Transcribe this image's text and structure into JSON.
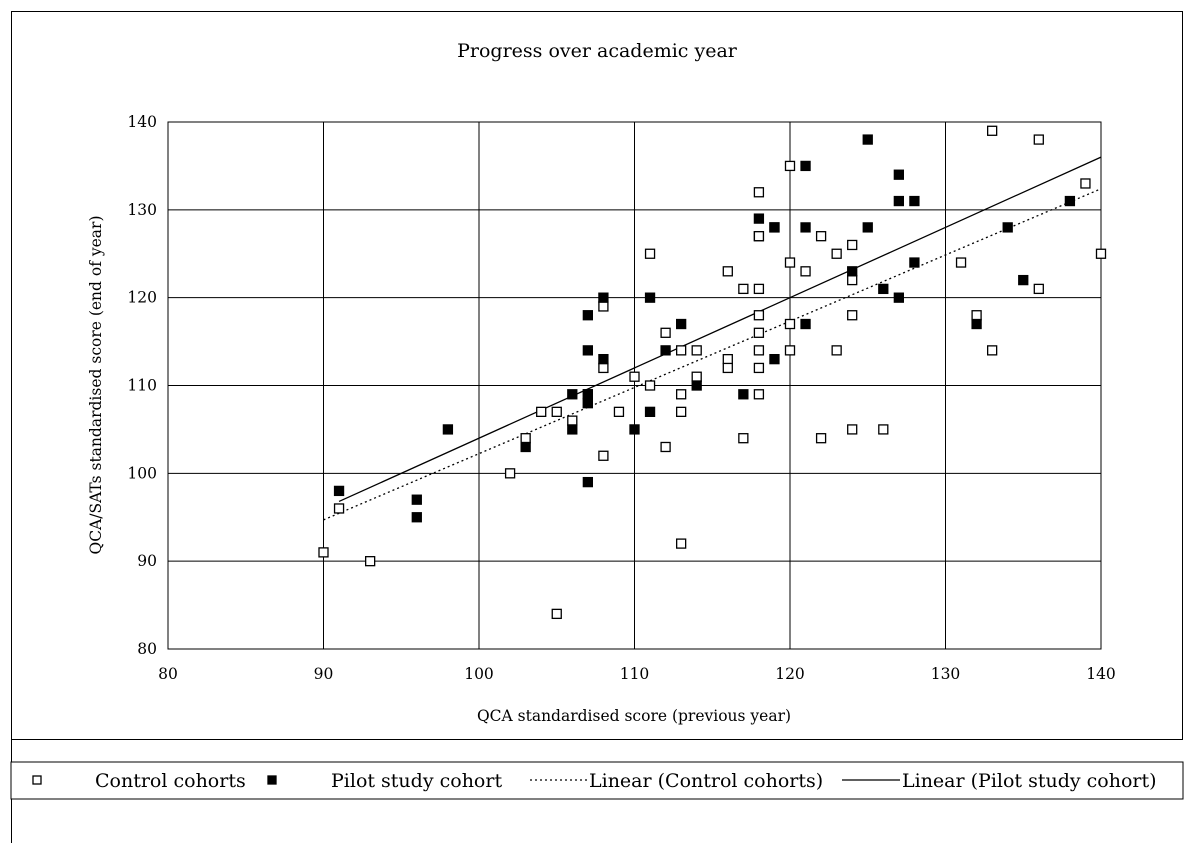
{
  "chart_data": {
    "type": "scatter",
    "title": "Progress over academic year",
    "xlabel": "QCA standardised score (previous year)",
    "ylabel": "QCA/SATs standardised score (end of year)",
    "xlim": [
      80,
      140
    ],
    "ylim": [
      80,
      140
    ],
    "xticks": [
      80,
      90,
      100,
      110,
      120,
      130,
      140
    ],
    "yticks": [
      80,
      90,
      100,
      110,
      120,
      130,
      140
    ],
    "grid": true,
    "legend_position": "bottom",
    "series": [
      {
        "name": "Control cohorts",
        "marker": "hollow-square",
        "color": "#000000",
        "points": [
          [
            90,
            91
          ],
          [
            91,
            96
          ],
          [
            93,
            90
          ],
          [
            102,
            100
          ],
          [
            103,
            104
          ],
          [
            104,
            107
          ],
          [
            105,
            107
          ],
          [
            105,
            84
          ],
          [
            106,
            106
          ],
          [
            107,
            108
          ],
          [
            107,
            109
          ],
          [
            108,
            119
          ],
          [
            108,
            112
          ],
          [
            108,
            102
          ],
          [
            109,
            107
          ],
          [
            110,
            111
          ],
          [
            111,
            125
          ],
          [
            111,
            110
          ],
          [
            112,
            116
          ],
          [
            112,
            103
          ],
          [
            113,
            114
          ],
          [
            113,
            109
          ],
          [
            113,
            107
          ],
          [
            113,
            92
          ],
          [
            114,
            114
          ],
          [
            114,
            111
          ],
          [
            116,
            123
          ],
          [
            116,
            113
          ],
          [
            116,
            112
          ],
          [
            117,
            121
          ],
          [
            117,
            104
          ],
          [
            118,
            132
          ],
          [
            118,
            127
          ],
          [
            118,
            127
          ],
          [
            118,
            121
          ],
          [
            118,
            118
          ],
          [
            118,
            116
          ],
          [
            118,
            114
          ],
          [
            118,
            112
          ],
          [
            118,
            109
          ],
          [
            119,
            128
          ],
          [
            120,
            135
          ],
          [
            120,
            124
          ],
          [
            120,
            117
          ],
          [
            120,
            114
          ],
          [
            121,
            123
          ],
          [
            122,
            127
          ],
          [
            122,
            104
          ],
          [
            123,
            125
          ],
          [
            123,
            114
          ],
          [
            124,
            126
          ],
          [
            124,
            122
          ],
          [
            124,
            118
          ],
          [
            124,
            105
          ],
          [
            126,
            105
          ],
          [
            131,
            124
          ],
          [
            132,
            118
          ],
          [
            133,
            139
          ],
          [
            133,
            114
          ],
          [
            136,
            138
          ],
          [
            136,
            121
          ],
          [
            139,
            133
          ],
          [
            140,
            125
          ]
        ]
      },
      {
        "name": "Pilot study cohort",
        "marker": "filled-square",
        "color": "#000000",
        "points": [
          [
            91,
            98
          ],
          [
            96,
            97
          ],
          [
            96,
            95
          ],
          [
            98,
            105
          ],
          [
            103,
            103
          ],
          [
            106,
            109
          ],
          [
            106,
            105
          ],
          [
            107,
            118
          ],
          [
            107,
            114
          ],
          [
            107,
            109
          ],
          [
            107,
            108
          ],
          [
            107,
            99
          ],
          [
            108,
            120
          ],
          [
            108,
            113
          ],
          [
            110,
            105
          ],
          [
            111,
            120
          ],
          [
            111,
            107
          ],
          [
            112,
            114
          ],
          [
            113,
            117
          ],
          [
            114,
            110
          ],
          [
            117,
            109
          ],
          [
            118,
            129
          ],
          [
            119,
            128
          ],
          [
            119,
            113
          ],
          [
            121,
            135
          ],
          [
            121,
            128
          ],
          [
            121,
            117
          ],
          [
            124,
            123
          ],
          [
            125,
            138
          ],
          [
            125,
            128
          ],
          [
            126,
            121
          ],
          [
            127,
            134
          ],
          [
            127,
            131
          ],
          [
            127,
            120
          ],
          [
            128,
            131
          ],
          [
            128,
            124
          ],
          [
            132,
            117
          ],
          [
            134,
            128
          ],
          [
            135,
            122
          ],
          [
            138,
            131
          ]
        ]
      }
    ],
    "trendlines": [
      {
        "name": "Linear (Control cohorts)",
        "style": "dotted",
        "x": [
          90,
          140
        ],
        "y": [
          94.7,
          132.4
        ]
      },
      {
        "name": "Linear (Pilot study cohort)",
        "style": "solid",
        "x": [
          91,
          140
        ],
        "y": [
          96.8,
          136.0
        ]
      }
    ]
  },
  "legend": {
    "items": [
      {
        "label": "Control cohorts",
        "marker": "hollow-square"
      },
      {
        "label": "Pilot study cohort",
        "marker": "filled-square"
      },
      {
        "label": "Linear (Control cohorts)",
        "marker": "dotted-line"
      },
      {
        "label": "Linear (Pilot study cohort)",
        "marker": "solid-line"
      }
    ]
  }
}
